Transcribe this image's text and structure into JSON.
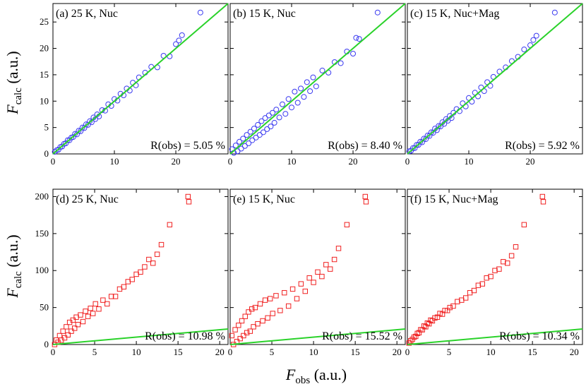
{
  "axes": {
    "ylabel": {
      "var": "F",
      "sub": "calc",
      "unit": " (a.u.)"
    },
    "xlabel": {
      "var": "F",
      "sub": "obs",
      "unit": " (a.u.)"
    }
  },
  "colors": {
    "top_marker": "#3a3af0",
    "bottom_marker": "#f02020",
    "fit_line": "#2ad22a"
  },
  "chart_data": [
    {
      "type": "scatter",
      "row": 0,
      "marker": "circle",
      "xlim": [
        0,
        28.5
      ],
      "ylim": [
        0,
        28.5
      ],
      "xticks": [
        0,
        10,
        20
      ],
      "yticks": [
        0,
        5,
        10,
        15,
        20,
        25
      ],
      "panels": [
        {
          "title": "(a) 25 K, Nuc",
          "r_text": "R(obs) = 5.05 %",
          "r_obs": 5.05
        },
        {
          "title": "(b) 15 K, Nuc",
          "r_text": "R(obs) = 8.40 %",
          "r_obs": 8.4
        },
        {
          "title": "(c) 15 K, Nuc+Mag",
          "r_text": "R(obs) = 5.92 %",
          "r_obs": 5.92
        }
      ],
      "series": [
        {
          "name": "(a) 25 K, Nuc",
          "x": [
            0.3,
            0.6,
            0.9,
            1.2,
            1.5,
            1.8,
            2.1,
            2.4,
            2.7,
            3.0,
            3.3,
            3.6,
            3.9,
            4.2,
            4.5,
            4.8,
            5.1,
            5.4,
            5.7,
            6.0,
            6.3,
            6.6,
            6.9,
            7.2,
            7.5,
            8.0,
            8.5,
            9.0,
            9.5,
            10.0,
            10.5,
            11.0,
            11.5,
            12.0,
            12.5,
            13.0,
            13.5,
            14.0,
            15.0,
            16.0,
            17.0,
            18.0,
            19.0,
            20.0,
            20.5,
            21.0,
            24.0
          ],
          "y": [
            0.4,
            0.7,
            0.8,
            1.3,
            1.4,
            1.9,
            2.0,
            2.6,
            2.6,
            3.1,
            3.2,
            3.8,
            3.7,
            4.4,
            4.3,
            5.0,
            4.9,
            5.6,
            5.5,
            6.2,
            6.0,
            6.9,
            6.6,
            7.5,
            7.1,
            8.3,
            8.2,
            9.4,
            9.1,
            10.4,
            10.1,
            11.4,
            11.1,
            12.4,
            12.0,
            13.5,
            13.0,
            14.5,
            15.4,
            16.5,
            16.4,
            18.6,
            18.5,
            20.8,
            21.5,
            22.5,
            26.8
          ]
        },
        {
          "name": "(b) 15 K, Nuc",
          "x": [
            0.3,
            0.6,
            0.9,
            1.2,
            1.5,
            1.8,
            2.1,
            2.4,
            2.7,
            3.0,
            3.3,
            3.6,
            3.9,
            4.2,
            4.5,
            4.8,
            5.1,
            5.4,
            5.7,
            6.0,
            6.3,
            6.6,
            6.9,
            7.2,
            7.5,
            8.0,
            8.5,
            9.0,
            9.5,
            10.0,
            10.5,
            11.0,
            11.5,
            12.0,
            12.5,
            13.0,
            13.5,
            14.0,
            15.0,
            16.0,
            17.0,
            18.0,
            19.0,
            20.0,
            20.5,
            21.0,
            24.0
          ],
          "y": [
            0.9,
            0.2,
            1.6,
            0.5,
            2.3,
            1.0,
            2.9,
            1.5,
            3.6,
            2.0,
            4.2,
            2.6,
            4.8,
            3.1,
            5.5,
            3.6,
            6.2,
            4.1,
            6.8,
            4.7,
            7.3,
            5.2,
            7.8,
            5.9,
            8.4,
            6.9,
            9.4,
            7.6,
            10.4,
            8.8,
            11.8,
            9.7,
            12.4,
            10.8,
            13.6,
            11.9,
            14.5,
            12.8,
            15.8,
            15.4,
            17.4,
            17.2,
            19.4,
            19.0,
            22.0,
            21.8,
            26.8
          ]
        },
        {
          "name": "(c) 15 K, Nuc+Mag",
          "x": [
            0.3,
            0.6,
            0.9,
            1.2,
            1.5,
            1.8,
            2.1,
            2.4,
            2.7,
            3.0,
            3.3,
            3.6,
            3.9,
            4.2,
            4.5,
            4.8,
            5.1,
            5.4,
            5.7,
            6.0,
            6.3,
            6.6,
            6.9,
            7.2,
            7.5,
            8.0,
            8.5,
            9.0,
            9.5,
            10.0,
            10.5,
            11.0,
            11.5,
            12.0,
            12.5,
            13.0,
            13.5,
            14.0,
            15.0,
            16.0,
            17.0,
            18.0,
            19.0,
            20.0,
            20.5,
            21.0,
            24.0
          ],
          "y": [
            0.5,
            0.6,
            1.1,
            1.1,
            1.7,
            1.7,
            2.3,
            2.2,
            2.9,
            2.8,
            3.5,
            3.4,
            4.1,
            4.0,
            4.8,
            4.5,
            5.3,
            5.2,
            6.0,
            5.7,
            6.6,
            6.3,
            7.2,
            6.8,
            7.8,
            8.5,
            8.1,
            9.6,
            9.0,
            10.6,
            9.9,
            11.6,
            10.9,
            12.6,
            11.9,
            13.6,
            12.9,
            14.6,
            15.6,
            16.4,
            17.6,
            18.4,
            19.8,
            20.6,
            21.6,
            22.4,
            26.8
          ]
        }
      ]
    },
    {
      "type": "scatter",
      "row": 1,
      "marker": "square",
      "xlim": [
        0,
        21
      ],
      "ylim": [
        0,
        210
      ],
      "xticks": [
        0,
        5,
        10,
        15,
        20
      ],
      "yticks": [
        0,
        50,
        100,
        150,
        200
      ],
      "panels": [
        {
          "title": "(d) 25 K, Nuc",
          "r_text": "R(obs) = 10.98 %",
          "r_obs": 10.98
        },
        {
          "title": "(e) 15 K, Nuc",
          "r_text": "R(obs) = 15.52 %",
          "r_obs": 15.52
        },
        {
          "title": "(f) 15 K, Nuc+Mag",
          "r_text": "R(obs) = 10.34 %",
          "r_obs": 10.34
        }
      ],
      "series": [
        {
          "name": "(d) 25 K, Nuc",
          "x": [
            0.2,
            0.4,
            0.6,
            0.8,
            1.0,
            1.2,
            1.4,
            1.6,
            1.8,
            2.0,
            2.2,
            2.4,
            2.6,
            2.8,
            3.0,
            3.3,
            3.6,
            3.9,
            4.2,
            4.5,
            4.8,
            5.1,
            5.5,
            6.0,
            6.5,
            7.0,
            7.5,
            8.0,
            8.5,
            9.0,
            9.5,
            10.0,
            10.5,
            11.0,
            11.5,
            12.0,
            12.5,
            13.0,
            14.0,
            16.2,
            16.3
          ],
          "y": [
            0,
            6,
            3,
            12,
            6,
            18,
            9,
            24,
            13,
            30,
            18,
            33,
            22,
            37,
            27,
            40,
            31,
            45,
            38,
            49,
            42,
            55,
            48,
            60,
            55,
            65,
            65,
            75,
            78,
            85,
            88,
            95,
            98,
            105,
            115,
            110,
            122,
            135,
            162,
            200,
            193
          ]
        },
        {
          "name": "(e) 15 K, Nuc",
          "x": [
            0.2,
            0.4,
            0.6,
            0.8,
            1.0,
            1.2,
            1.4,
            1.6,
            1.8,
            2.0,
            2.2,
            2.4,
            2.6,
            2.8,
            3.0,
            3.3,
            3.6,
            3.9,
            4.2,
            4.5,
            4.8,
            5.1,
            5.5,
            6.0,
            6.5,
            7.0,
            7.5,
            8.0,
            8.5,
            9.0,
            9.5,
            10.0,
            10.5,
            11.0,
            11.5,
            12.0,
            12.5,
            13.0,
            14.0,
            16.2,
            16.3
          ],
          "y": [
            12,
            0,
            20,
            4,
            26,
            8,
            32,
            12,
            38,
            16,
            44,
            18,
            48,
            24,
            50,
            28,
            55,
            32,
            60,
            36,
            62,
            42,
            66,
            46,
            70,
            52,
            75,
            62,
            82,
            72,
            90,
            84,
            98,
            92,
            108,
            102,
            115,
            130,
            162,
            200,
            193
          ]
        },
        {
          "name": "(f) 15 K, Nuc+Mag",
          "x": [
            0.2,
            0.4,
            0.6,
            0.8,
            1.0,
            1.2,
            1.4,
            1.6,
            1.8,
            2.0,
            2.2,
            2.4,
            2.6,
            2.8,
            3.0,
            3.3,
            3.6,
            3.9,
            4.2,
            4.5,
            4.8,
            5.1,
            5.5,
            6.0,
            6.5,
            7.0,
            7.5,
            8.0,
            8.5,
            9.0,
            9.5,
            10.0,
            10.5,
            11.0,
            11.5,
            12.0,
            12.5,
            13.0,
            14.0,
            16.2,
            16.3
          ],
          "y": [
            2,
            5,
            7,
            10,
            11,
            15,
            16,
            20,
            20,
            25,
            24,
            29,
            28,
            33,
            32,
            36,
            37,
            42,
            41,
            46,
            46,
            50,
            52,
            58,
            60,
            63,
            70,
            73,
            80,
            82,
            90,
            92,
            100,
            102,
            112,
            110,
            120,
            132,
            162,
            200,
            193
          ]
        }
      ]
    }
  ]
}
